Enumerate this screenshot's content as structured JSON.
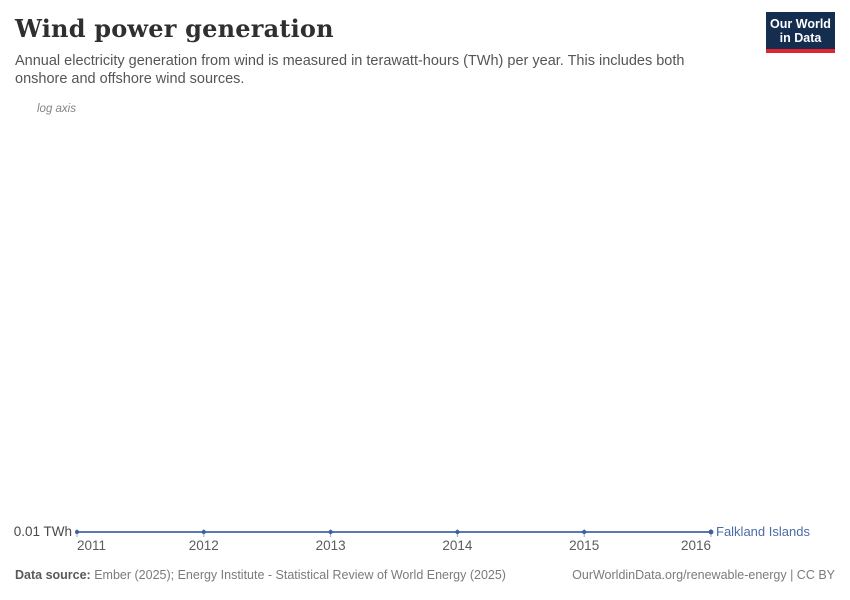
{
  "header": {
    "title": "Wind power generation",
    "subtitle": "Annual electricity generation from wind is measured in terawatt-hours (TWh) per year. This includes both onshore and offshore wind sources.",
    "logo": {
      "line1": "Our World",
      "line2": "in Data",
      "bg_color": "#152d4f",
      "accent_color": "#e02430"
    }
  },
  "chart": {
    "axis_note": "log axis",
    "y_axis_label": "0.01 TWh",
    "entity_label": "Falkland Islands",
    "line_color": "#5a78b3",
    "marker_color": "#3d5f9f",
    "tick_color": "#92a5c9",
    "entity_label_color": "#4c6ba8"
  },
  "chart_data": {
    "type": "line",
    "title": "Wind power generation",
    "unit": "TWh",
    "yscale": "log",
    "x": [
      2011,
      2012,
      2013,
      2014,
      2015,
      2016
    ],
    "xticks": [
      "2011",
      "2012",
      "2013",
      "2014",
      "2015",
      "2016"
    ],
    "ytick_labels": [
      "0.01 TWh"
    ],
    "series": [
      {
        "name": "Falkland Islands",
        "values": [
          0.01,
          0.01,
          0.01,
          0.01,
          0.01,
          0.01
        ]
      }
    ],
    "legend_position": "end-of-line",
    "grid": false
  },
  "footer": {
    "datasource_label": "Data source:",
    "datasource_text": " Ember (2025); Energy Institute - Statistical Review of World Energy (2025)",
    "rights": "OurWorldinData.org/renewable-energy | CC BY"
  }
}
